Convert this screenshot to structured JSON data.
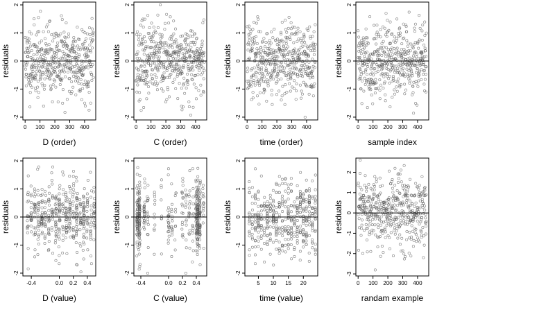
{
  "chart_data": [
    {
      "type": "scatter",
      "ylabel": "residuals",
      "xlabel": "D (order)",
      "xticks": [
        0,
        100,
        200,
        300,
        400
      ],
      "xlim": [
        -15,
        475
      ],
      "yticks": [
        -2,
        -1,
        0,
        1,
        2
      ],
      "ylim": [
        -2.1,
        2.1
      ],
      "ref_line": 0,
      "n": 460,
      "seed": 11,
      "dist": {
        "mode": "uniform",
        "sd": 0.65,
        "kind": "index"
      }
    },
    {
      "type": "scatter",
      "ylabel": "residuals",
      "xlabel": "C (order)",
      "xticks": [
        0,
        100,
        200,
        300,
        400
      ],
      "xlim": [
        -15,
        475
      ],
      "yticks": [
        -2,
        -1,
        0,
        1,
        2
      ],
      "ylim": [
        -2.1,
        2.1
      ],
      "ref_line": 0,
      "n": 460,
      "seed": 23,
      "dist": {
        "mode": "uniform",
        "sd": 0.65,
        "kind": "index"
      }
    },
    {
      "type": "scatter",
      "ylabel": "residuals",
      "xlabel": "time (order)",
      "xticks": [
        0,
        100,
        200,
        300,
        400
      ],
      "xlim": [
        -15,
        475
      ],
      "yticks": [
        -2,
        -1,
        0,
        1,
        2
      ],
      "ylim": [
        -2.1,
        2.1
      ],
      "ref_line": 0,
      "n": 460,
      "seed": 37,
      "dist": {
        "mode": "uniform",
        "sd": 0.65,
        "kind": "index"
      }
    },
    {
      "type": "scatter",
      "ylabel": "residuals",
      "xlabel": "sample index",
      "xticks": [
        0,
        100,
        200,
        300,
        400
      ],
      "xlim": [
        -15,
        475
      ],
      "yticks": [
        -2,
        -1,
        0,
        1,
        2
      ],
      "ylim": [
        -2.1,
        2.1
      ],
      "ref_line": 0,
      "n": 460,
      "seed": 41,
      "dist": {
        "mode": "uniform",
        "sd": 0.65,
        "kind": "index"
      }
    },
    {
      "type": "scatter",
      "ylabel": "residuals",
      "xlabel": "D (value)",
      "xticks": [
        -0.4,
        0,
        0.2,
        0.4
      ],
      "xtick_labels": [
        "-0.4",
        "0.0",
        "0.2",
        "0.4"
      ],
      "xlim": [
        -0.52,
        0.52
      ],
      "yticks": [
        -2,
        -1,
        0,
        1,
        2
      ],
      "ylim": [
        -2.1,
        2.1
      ],
      "ref_line": 0,
      "n": 460,
      "seed": 53,
      "dist": {
        "mode": "grid",
        "sd": 0.65,
        "kind": "value",
        "grid": [
          -0.45,
          -0.4,
          -0.35,
          -0.3,
          -0.25,
          -0.2,
          -0.15,
          -0.1,
          -0.05,
          0,
          0.05,
          0.1,
          0.15,
          0.2,
          0.25,
          0.3,
          0.35,
          0.4,
          0.45,
          0.5
        ],
        "jitter": 0.01
      }
    },
    {
      "type": "scatter",
      "ylabel": "residuals",
      "xlabel": "C (value)",
      "xticks": [
        -0.4,
        0,
        0.2,
        0.4
      ],
      "xtick_labels": [
        "-0.4",
        "0.0",
        "0.2",
        "0.4"
      ],
      "xlim": [
        -0.5,
        0.55
      ],
      "yticks": [
        -2,
        -1,
        0,
        1,
        2
      ],
      "ylim": [
        -2.1,
        2.1
      ],
      "ref_line": 0,
      "n": 460,
      "seed": 67,
      "dist": {
        "mode": "grid",
        "sd": 0.65,
        "kind": "value",
        "grid": [
          -0.45,
          -0.42,
          -0.35,
          -0.3,
          -0.2,
          -0.1,
          0,
          0.05,
          0.1,
          0.2,
          0.25,
          0.3,
          0.35,
          0.4,
          0.42,
          0.45,
          0.5
        ],
        "weights": [
          3,
          4,
          1,
          1,
          1,
          1,
          1,
          1,
          1,
          1,
          1,
          1,
          1,
          3,
          4,
          3,
          1
        ],
        "jitter": 0.008
      }
    },
    {
      "type": "scatter",
      "ylabel": "residuals",
      "xlabel": "time (value)",
      "xticks": [
        5,
        10,
        15,
        20
      ],
      "xlim": [
        0.5,
        24.8
      ],
      "yticks": [
        -2,
        -1,
        0,
        1,
        2
      ],
      "ylim": [
        -2.1,
        2.1
      ],
      "ref_line": 0,
      "n": 460,
      "seed": 79,
      "dist": {
        "mode": "grid",
        "sd": 0.65,
        "kind": "value",
        "grid": [
          2,
          3,
          4,
          5,
          6,
          7,
          8,
          9,
          10,
          11,
          12,
          13,
          14,
          15,
          16,
          17,
          18,
          19,
          20,
          21,
          22,
          23,
          24
        ],
        "jitter": 0.05
      }
    },
    {
      "type": "scatter",
      "ylabel": "residuals",
      "xlabel": "randam example",
      "xticks": [
        0,
        100,
        200,
        300,
        400
      ],
      "xlim": [
        -15,
        475
      ],
      "yticks": [
        -3,
        -2,
        -1,
        0,
        1,
        2
      ],
      "ylim": [
        -3.1,
        2.7
      ],
      "ref_line": 0,
      "n": 460,
      "seed": 97,
      "dist": {
        "mode": "uniform",
        "sd": 0.95,
        "kind": "index"
      }
    }
  ]
}
